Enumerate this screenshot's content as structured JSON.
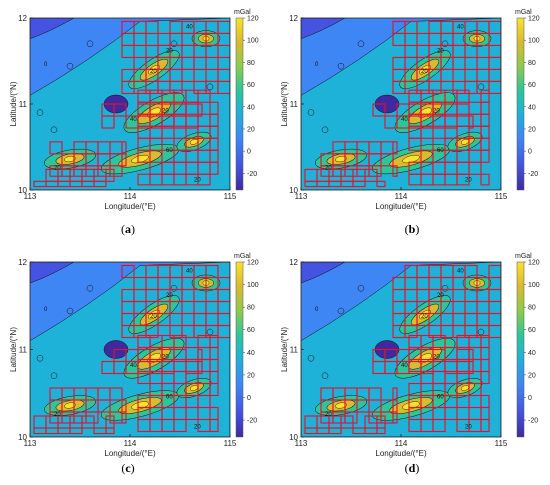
{
  "figure": {
    "colorbar": {
      "unit": "mGal",
      "ticks": [
        "120",
        "100",
        "80",
        "60",
        "40",
        "20",
        "0",
        "-20"
      ],
      "range": [
        -35,
        120
      ],
      "colors": [
        "#3e2a9e",
        "#4453e0",
        "#3f86f5",
        "#1fb2d8",
        "#2cc69a",
        "#8dcc4b",
        "#d9ba30",
        "#f9e32a"
      ]
    },
    "panels": [
      {
        "label_open": "(",
        "label_letter": "a",
        "label_close": ")"
      },
      {
        "label_open": "(",
        "label_letter": "b",
        "label_close": ")"
      },
      {
        "label_open": "(",
        "label_letter": "c",
        "label_close": ")"
      },
      {
        "label_open": "(",
        "label_letter": "d",
        "label_close": ")"
      }
    ]
  },
  "chart_data": [
    {
      "type": "heatmap",
      "panel": "a",
      "xlabel": "Longitude/(°E)",
      "ylabel": "Latitude/(°N)",
      "xlim": [
        113,
        115
      ],
      "ylim": [
        10,
        12
      ],
      "xticks": [
        "113",
        "114",
        "115"
      ],
      "yticks": [
        "12",
        "11",
        "10"
      ],
      "zlim": [
        -35,
        120
      ],
      "zunit": "mGal",
      "overlay": "red rectangular grid cells over high-anomaly zones",
      "contour_labels": [
        "40",
        "20",
        "0",
        "20",
        "20",
        "40",
        "60",
        "20",
        "20"
      ]
    },
    {
      "type": "heatmap",
      "panel": "b",
      "xlabel": "Longitude/(°E)",
      "ylabel": "Latitude/(°N)",
      "xlim": [
        113,
        115
      ],
      "ylim": [
        10,
        12
      ],
      "xticks": [
        "113",
        "114",
        "115"
      ],
      "yticks": [
        "12",
        "11",
        "10"
      ],
      "zlim": [
        -35,
        120
      ],
      "zunit": "mGal",
      "overlay": "red rectangular grid cells over high-anomaly zones",
      "contour_labels": [
        "40",
        "20",
        "0",
        "20",
        "20",
        "40",
        "60",
        "20",
        "20"
      ]
    },
    {
      "type": "heatmap",
      "panel": "c",
      "xlabel": "Longitude/(°E)",
      "ylabel": "Latitude/(°N)",
      "xlim": [
        113,
        115
      ],
      "ylim": [
        10,
        12
      ],
      "xticks": [
        "113",
        "114",
        "115"
      ],
      "yticks": [
        "12",
        "11",
        "10"
      ],
      "zlim": [
        -35,
        120
      ],
      "zunit": "mGal",
      "overlay": "red rectangular grid cells over high-anomaly zones",
      "contour_labels": [
        "40",
        "20",
        "0",
        "20",
        "20",
        "40",
        "60",
        "20",
        "20"
      ]
    },
    {
      "type": "heatmap",
      "panel": "d",
      "xlabel": "Longitude/(°E)",
      "ylabel": "Latitude/(°N)",
      "xlim": [
        113,
        115
      ],
      "ylim": [
        10,
        12
      ],
      "xticks": [
        "113",
        "114",
        "115"
      ],
      "yticks": [
        "12",
        "11",
        "10"
      ],
      "zlim": [
        -35,
        120
      ],
      "zunit": "mGal",
      "overlay": "red rectangular grid cells over high-anomaly zones",
      "contour_labels": [
        "40",
        "20",
        "0",
        "20",
        "20",
        "40",
        "60",
        "20",
        "20"
      ]
    }
  ]
}
